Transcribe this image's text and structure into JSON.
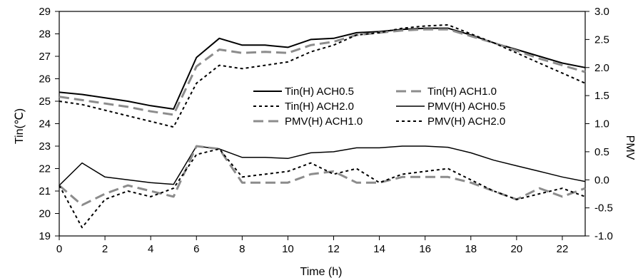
{
  "chart_data": {
    "type": "line",
    "title": "",
    "xlabel": "Time (h)",
    "ylabel_left": "Tin(℃)",
    "ylabel_right": "PMV",
    "x_ticks": [
      "0",
      "2",
      "4",
      "6",
      "8",
      "10",
      "12",
      "14",
      "16",
      "18",
      "20",
      "22"
    ],
    "xlim": [
      0,
      23
    ],
    "ylim_left": [
      19,
      29
    ],
    "ylim_right": [
      -1.0,
      3.0
    ],
    "yticks_left": [
      "19",
      "20",
      "21",
      "22",
      "23",
      "24",
      "25",
      "26",
      "27",
      "28",
      "29"
    ],
    "yticks_right": [
      "-1.0",
      "-0.5",
      "0.0",
      "0.5",
      "1.0",
      "1.5",
      "2.0",
      "2.5",
      "3.0"
    ],
    "grid": false,
    "legend_placement": "center-right",
    "x": [
      0,
      1,
      2,
      3,
      4,
      5,
      6,
      7,
      8,
      9,
      10,
      11,
      12,
      13,
      14,
      15,
      16,
      17,
      18,
      19,
      20,
      21,
      22,
      23
    ],
    "series": [
      {
        "name": "Tin(H) ACH0.5",
        "axis": "left",
        "style": "solid",
        "color": "#000000",
        "values": [
          25.4,
          25.3,
          25.15,
          25.0,
          24.8,
          24.65,
          26.95,
          27.8,
          27.5,
          27.5,
          27.4,
          27.75,
          27.8,
          28.05,
          28.1,
          28.2,
          28.25,
          28.25,
          27.95,
          27.6,
          27.3,
          27.0,
          26.7,
          26.5
        ]
      },
      {
        "name": "Tin(H) ACH1.0",
        "axis": "left",
        "style": "dash",
        "color": "#8c8c8c",
        "values": [
          25.2,
          25.05,
          24.9,
          24.75,
          24.55,
          24.4,
          26.55,
          27.3,
          27.15,
          27.2,
          27.15,
          27.5,
          27.65,
          27.95,
          28.05,
          28.15,
          28.2,
          28.2,
          27.9,
          27.6,
          27.25,
          26.9,
          26.6,
          26.3
        ]
      },
      {
        "name": "Tin(H) ACH2.0",
        "axis": "left",
        "style": "dot",
        "color": "#000000",
        "values": [
          25.0,
          24.85,
          24.6,
          24.35,
          24.1,
          23.85,
          25.8,
          26.6,
          26.45,
          26.6,
          26.75,
          27.2,
          27.5,
          27.95,
          28.05,
          28.25,
          28.35,
          28.4,
          28.0,
          27.6,
          27.15,
          26.7,
          26.25,
          25.8
        ]
      },
      {
        "name": "PMV(H) ACH0.5",
        "axis": "right",
        "style": "solid-thin",
        "color": "#000000",
        "values": [
          -0.1,
          0.3,
          0.05,
          0.0,
          -0.05,
          -0.08,
          0.6,
          0.55,
          0.4,
          0.4,
          0.38,
          0.48,
          0.5,
          0.57,
          0.57,
          0.6,
          0.6,
          0.58,
          0.48,
          0.35,
          0.25,
          0.15,
          0.05,
          -0.03
        ]
      },
      {
        "name": "PMV(H) ACH1.0",
        "axis": "right",
        "style": "dash",
        "color": "#8c8c8c",
        "values": [
          -0.1,
          -0.45,
          -0.25,
          -0.1,
          -0.2,
          -0.3,
          0.6,
          0.55,
          -0.05,
          -0.05,
          -0.05,
          0.1,
          0.15,
          -0.05,
          -0.05,
          0.05,
          0.05,
          0.05,
          -0.05,
          -0.2,
          -0.35,
          -0.15,
          -0.3,
          -0.15
        ]
      },
      {
        "name": "PMV(H) ACH2.0",
        "axis": "right",
        "style": "dot",
        "color": "#000000",
        "values": [
          -0.1,
          -0.85,
          -0.35,
          -0.2,
          -0.3,
          -0.15,
          0.45,
          0.55,
          0.05,
          0.1,
          0.15,
          0.3,
          0.1,
          0.2,
          -0.05,
          0.1,
          0.15,
          0.2,
          0.0,
          -0.2,
          -0.35,
          -0.25,
          -0.15,
          -0.3
        ]
      }
    ]
  }
}
